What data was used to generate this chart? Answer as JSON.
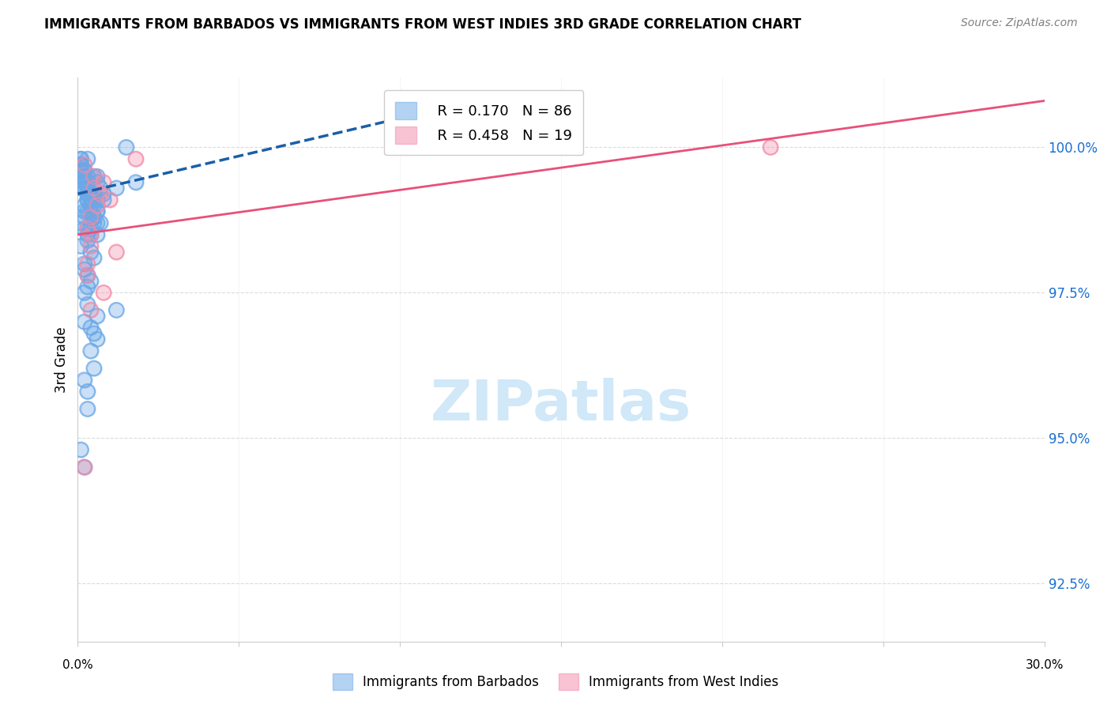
{
  "title": "IMMIGRANTS FROM BARBADOS VS IMMIGRANTS FROM WEST INDIES 3RD GRADE CORRELATION CHART",
  "source": "Source: ZipAtlas.com",
  "ylabel": "3rd Grade",
  "yticks": [
    92.5,
    95.0,
    97.5,
    100.0
  ],
  "ytick_labels": [
    "92.5%",
    "95.0%",
    "97.5%",
    "100.0%"
  ],
  "xmin": 0.0,
  "xmax": 30.0,
  "ymin": 91.5,
  "ymax": 101.2,
  "blue_R": 0.17,
  "blue_N": 86,
  "pink_R": 0.458,
  "pink_N": 19,
  "blue_color": "#6aa8e8",
  "pink_color": "#f28ba8",
  "trend_blue_color": "#1a5fa8",
  "trend_pink_color": "#e8507a",
  "watermark_color": "#d0e8f8",
  "blue_scatter_x": [
    0.3,
    0.5,
    0.8,
    0.2,
    1.2,
    0.4,
    0.1,
    0.6,
    0.3,
    0.2,
    0.4,
    0.5,
    0.7,
    0.3,
    0.1,
    0.2,
    0.6,
    0.4,
    0.2,
    0.5,
    0.3,
    0.1,
    0.4,
    0.2,
    0.3,
    0.5,
    0.8,
    0.2,
    0.1,
    0.3,
    0.4,
    0.6,
    0.2,
    0.1,
    0.5,
    0.3,
    0.2,
    0.4,
    1.5,
    0.3,
    0.2,
    0.6,
    0.1,
    0.4,
    0.3,
    0.5,
    0.2,
    0.7,
    0.3,
    0.1,
    0.4,
    0.6,
    0.2,
    0.3,
    0.5,
    0.4,
    0.2,
    0.3,
    0.6,
    0.1,
    0.5,
    0.3,
    0.2,
    0.4,
    1.8,
    0.3,
    0.2,
    0.5,
    0.1,
    0.4,
    0.6,
    0.2,
    0.3,
    0.5,
    0.2,
    0.4,
    1.2,
    0.3,
    0.1,
    0.6,
    0.4,
    0.2,
    0.3,
    0.5,
    0.6,
    0.2
  ],
  "blue_scatter_y": [
    99.8,
    99.5,
    99.2,
    99.6,
    99.3,
    98.8,
    99.7,
    99.4,
    99.1,
    98.9,
    99.0,
    98.7,
    99.3,
    98.5,
    99.8,
    99.6,
    99.1,
    98.8,
    99.4,
    99.2,
    98.6,
    99.7,
    99.0,
    99.3,
    98.4,
    99.5,
    99.1,
    99.6,
    99.8,
    98.9,
    99.2,
    98.7,
    99.5,
    99.3,
    99.0,
    99.4,
    98.8,
    99.1,
    100.0,
    99.2,
    98.6,
    98.9,
    99.7,
    99.0,
    99.5,
    98.8,
    99.3,
    98.7,
    99.1,
    99.6,
    98.5,
    98.9,
    99.4,
    99.2,
    98.8,
    98.6,
    99.0,
    99.3,
    99.5,
    98.7,
    99.1,
    97.8,
    98.0,
    98.2,
    99.4,
    97.6,
    97.9,
    98.1,
    98.3,
    97.7,
    98.5,
    97.5,
    97.3,
    96.8,
    97.0,
    96.5,
    97.2,
    95.8,
    94.8,
    97.1,
    96.9,
    96.0,
    95.5,
    96.2,
    96.7,
    94.5
  ],
  "pink_scatter_x": [
    0.2,
    0.5,
    1.0,
    0.3,
    1.8,
    0.4,
    0.3,
    0.6,
    0.8,
    0.4,
    1.2,
    0.3,
    0.5,
    0.4,
    0.7,
    0.2,
    0.4,
    0.8,
    21.5
  ],
  "pink_scatter_y": [
    99.7,
    99.3,
    99.1,
    98.6,
    99.8,
    98.8,
    97.8,
    99.0,
    99.4,
    98.5,
    98.2,
    98.0,
    99.5,
    98.3,
    99.2,
    94.5,
    97.2,
    97.5,
    100.0
  ],
  "blue_trend_x": [
    0.0,
    10.0
  ],
  "blue_trend_y": [
    99.2,
    100.5
  ],
  "pink_trend_x": [
    0.0,
    30.0
  ],
  "pink_trend_y": [
    98.5,
    100.8
  ]
}
